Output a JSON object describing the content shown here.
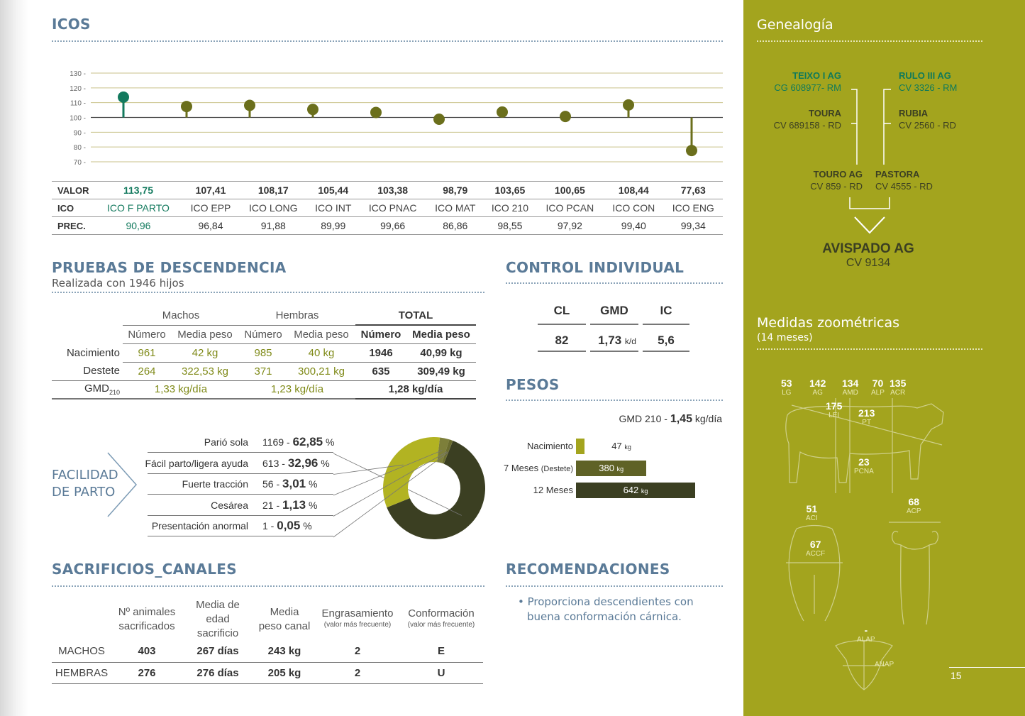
{
  "icos": {
    "title": "ICOS",
    "axis_ticks": [
      "130 -",
      "120 -",
      "110 -",
      "100 -",
      "90 -",
      "80 -",
      "70 -"
    ],
    "row_labels": {
      "valor": "VALOR",
      "ico": "ICO",
      "prec": "PREC."
    },
    "items": [
      {
        "name": "ICO F PARTO",
        "valor": "113,75",
        "prec": "90,96"
      },
      {
        "name": "ICO EPP",
        "valor": "107,41",
        "prec": "96,84"
      },
      {
        "name": "ICO LONG",
        "valor": "108,17",
        "prec": "91,88"
      },
      {
        "name": "ICO INT",
        "valor": "105,44",
        "prec": "89,99"
      },
      {
        "name": "ICO PNAC",
        "valor": "103,38",
        "prec": "99,66"
      },
      {
        "name": "ICO MAT",
        "valor": "98,79",
        "prec": "86,86"
      },
      {
        "name": "ICO 210",
        "valor": "103,65",
        "prec": "98,55"
      },
      {
        "name": "ICO PCAN",
        "valor": "100,65",
        "prec": "97,92"
      },
      {
        "name": "ICO CON",
        "valor": "108,44",
        "prec": "99,40"
      },
      {
        "name": "ICO ENG",
        "valor": "77,63",
        "prec": "99,34"
      }
    ]
  },
  "chart_data": {
    "type": "scatter",
    "categories": [
      "ICO F PARTO",
      "ICO EPP",
      "ICO LONG",
      "ICO INT",
      "ICO PNAC",
      "ICO MAT",
      "ICO 210",
      "ICO PCAN",
      "ICO CON",
      "ICO ENG"
    ],
    "values": [
      113.75,
      107.41,
      108.17,
      105.44,
      103.38,
      98.79,
      103.65,
      100.65,
      108.44,
      77.63
    ],
    "baseline": 100,
    "ylim": [
      70,
      130
    ],
    "yticks": [
      70,
      80,
      90,
      100,
      110,
      120,
      130
    ],
    "colors": {
      "highlight": "#137a5e",
      "normal": "#6b6f1c",
      "baseline": "#444444",
      "grid": "#c9c28a"
    }
  },
  "descendencia": {
    "title": "PRUEBAS DE DESCENDENCIA",
    "subtitle": "Realizada con 1946 hijos",
    "groups": {
      "machos": "Machos",
      "hembras": "Hembras",
      "total": "TOTAL"
    },
    "cols": {
      "numero": "Número",
      "media": "Media peso"
    },
    "rows": [
      {
        "label": "Nacimiento",
        "m_num": "961",
        "m_peso": "42 kg",
        "h_num": "985",
        "h_peso": "40 kg",
        "t_num": "1946",
        "t_peso": "40,99 kg"
      },
      {
        "label": "Destete",
        "m_num": "264",
        "m_peso": "322,53 kg",
        "h_num": "371",
        "h_peso": "300,21 kg",
        "t_num": "635",
        "t_peso": "309,49 kg"
      }
    ],
    "gmd": {
      "label": "GMD",
      "sub": "210",
      "machos": "1,33 kg/día",
      "hembras": "1,23 kg/día",
      "total": "1,28 kg/día"
    }
  },
  "control": {
    "title": "CONTROL INDIVIDUAL",
    "headers": [
      "CL",
      "GMD",
      "IC"
    ],
    "values": [
      "82",
      "1,73",
      "5,6"
    ],
    "gmd_unit": "k/d"
  },
  "pesos": {
    "title": "PESOS",
    "gmd_label": "GMD 210 -",
    "gmd_value": "1,45",
    "gmd_unit": "kg/día",
    "bars": [
      {
        "label": "Nacimiento",
        "value": "47",
        "unit": "kg",
        "num": 47,
        "color": "#a3a41e"
      },
      {
        "label": "7 Meses",
        "sub": "(Destete)",
        "value": "380",
        "unit": "kg",
        "num": 380,
        "color": "#5f6226"
      },
      {
        "label": "12 Meses",
        "value": "642",
        "unit": "kg",
        "num": 642,
        "color": "#3b3f22"
      }
    ]
  },
  "parto": {
    "title_line1": "FACILIDAD",
    "title_line2": "DE PARTO",
    "rows": [
      {
        "label": "Parió sola",
        "count": "1169 -",
        "pct": "62,85",
        "unit": "%",
        "num": 62.85
      },
      {
        "label": "Fácil parto/ligera ayuda",
        "count": "613 -",
        "pct": "32,96",
        "unit": "%",
        "num": 32.96
      },
      {
        "label": "Fuerte tracción",
        "count": "56 -",
        "pct": "3,01",
        "unit": "%",
        "num": 3.01
      },
      {
        "label": "Cesárea",
        "count": "21 -",
        "pct": "1,13",
        "unit": "%",
        "num": 1.13
      },
      {
        "label": "Presentación anormal",
        "count": "1 -",
        "pct": "0,05",
        "unit": "%",
        "num": 0.05
      }
    ],
    "colors": [
      "#3b3f22",
      "#b2b322",
      "#7d7f3a",
      "#6b6d2e",
      "#5a5c28"
    ]
  },
  "sacrificios": {
    "title": "SACRIFICIOS_CANALES",
    "headers": [
      {
        "l1": "Nº animales",
        "l2": "sacrificados"
      },
      {
        "l1": "Media de",
        "l2": "edad sacrificio"
      },
      {
        "l1": "Media",
        "l2": "peso canal"
      },
      {
        "l1": "Engrasamiento",
        "l2": "(valor más frecuente)"
      },
      {
        "l1": "Conformación",
        "l2": "(valor más frecuente)"
      }
    ],
    "rows": [
      {
        "label": "MACHOS",
        "vals": [
          "403",
          "267 días",
          "243 kg",
          "2",
          "E"
        ]
      },
      {
        "label": "HEMBRAS",
        "vals": [
          "276",
          "276 días",
          "205 kg",
          "2",
          "U"
        ]
      }
    ]
  },
  "recomendaciones": {
    "title": "RECOMENDACIONES",
    "text_l1": "• Proporciona descendientes con",
    "text_l2": "buena conformación cárnica."
  },
  "genealogia": {
    "title": "Genealogía",
    "gg_sire_f": {
      "name": "TEIXO I AG",
      "code": "CG 608977- RM"
    },
    "gg_sire_m": {
      "name": "RULO III AG",
      "code": "CV 3326 - RM"
    },
    "gg_dam_f": {
      "name": "TOURA",
      "code": "CV 689158 - RD"
    },
    "gg_dam_m": {
      "name": "RUBIA",
      "code": "CV 2560 - RD"
    },
    "sire": {
      "name": "TOURO AG",
      "code": "CV 859 - RD"
    },
    "dam": {
      "name": "PASTORA",
      "code": "CV 4555 - RD"
    },
    "animal": {
      "name": "AVISPADO AG",
      "code": "CV 9134"
    }
  },
  "zoometricas": {
    "title": "Medidas zoométricas",
    "subtitle": "(14 meses)",
    "measures": [
      {
        "v": "53",
        "k": "LG"
      },
      {
        "v": "142",
        "k": "AG"
      },
      {
        "v": "134",
        "k": "AMD"
      },
      {
        "v": "70",
        "k": "ALP"
      },
      {
        "v": "135",
        "k": "ACR"
      },
      {
        "v": "175",
        "k": "LEI"
      },
      {
        "v": "213",
        "k": "PT"
      },
      {
        "v": "23",
        "k": "PCNA"
      },
      {
        "v": "51",
        "k": "ACI"
      },
      {
        "v": "67",
        "k": "ACCF"
      },
      {
        "v": "68",
        "k": "ACP"
      },
      {
        "v": "-",
        "k": "ALAP"
      },
      {
        "v": "",
        "k": "ANAP"
      }
    ]
  },
  "page_number": "15"
}
